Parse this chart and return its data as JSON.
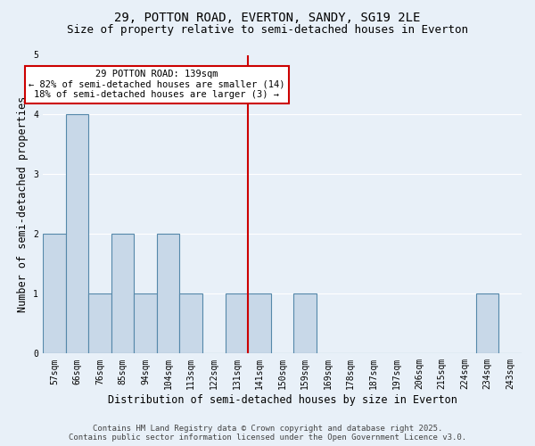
{
  "title": "29, POTTON ROAD, EVERTON, SANDY, SG19 2LE",
  "subtitle": "Size of property relative to semi-detached houses in Everton",
  "xlabel": "Distribution of semi-detached houses by size in Everton",
  "ylabel": "Number of semi-detached properties",
  "categories": [
    "57sqm",
    "66sqm",
    "76sqm",
    "85sqm",
    "94sqm",
    "104sqm",
    "113sqm",
    "122sqm",
    "131sqm",
    "141sqm",
    "150sqm",
    "159sqm",
    "169sqm",
    "178sqm",
    "187sqm",
    "197sqm",
    "206sqm",
    "215sqm",
    "224sqm",
    "234sqm",
    "243sqm"
  ],
  "values": [
    2,
    4,
    1,
    2,
    1,
    2,
    1,
    0,
    1,
    1,
    0,
    1,
    0,
    0,
    0,
    0,
    0,
    0,
    0,
    1,
    0
  ],
  "bar_color": "#c8d8e8",
  "bar_edge_color": "#5588aa",
  "vline_index": 9,
  "annotation_text": "29 POTTON ROAD: 139sqm\n← 82% of semi-detached houses are smaller (14)\n18% of semi-detached houses are larger (3) →",
  "annotation_box_color": "#ffffff",
  "annotation_box_edge_color": "#cc0000",
  "vline_color": "#cc0000",
  "footer": "Contains HM Land Registry data © Crown copyright and database right 2025.\nContains public sector information licensed under the Open Government Licence v3.0.",
  "ylim": [
    0,
    5
  ],
  "yticks": [
    0,
    1,
    2,
    3,
    4,
    5
  ],
  "background_color": "#e8f0f8",
  "grid_color": "#ffffff",
  "title_fontsize": 10,
  "subtitle_fontsize": 9,
  "axis_label_fontsize": 8.5,
  "tick_fontsize": 7,
  "footer_fontsize": 6.5,
  "annotation_fontsize": 7.5
}
